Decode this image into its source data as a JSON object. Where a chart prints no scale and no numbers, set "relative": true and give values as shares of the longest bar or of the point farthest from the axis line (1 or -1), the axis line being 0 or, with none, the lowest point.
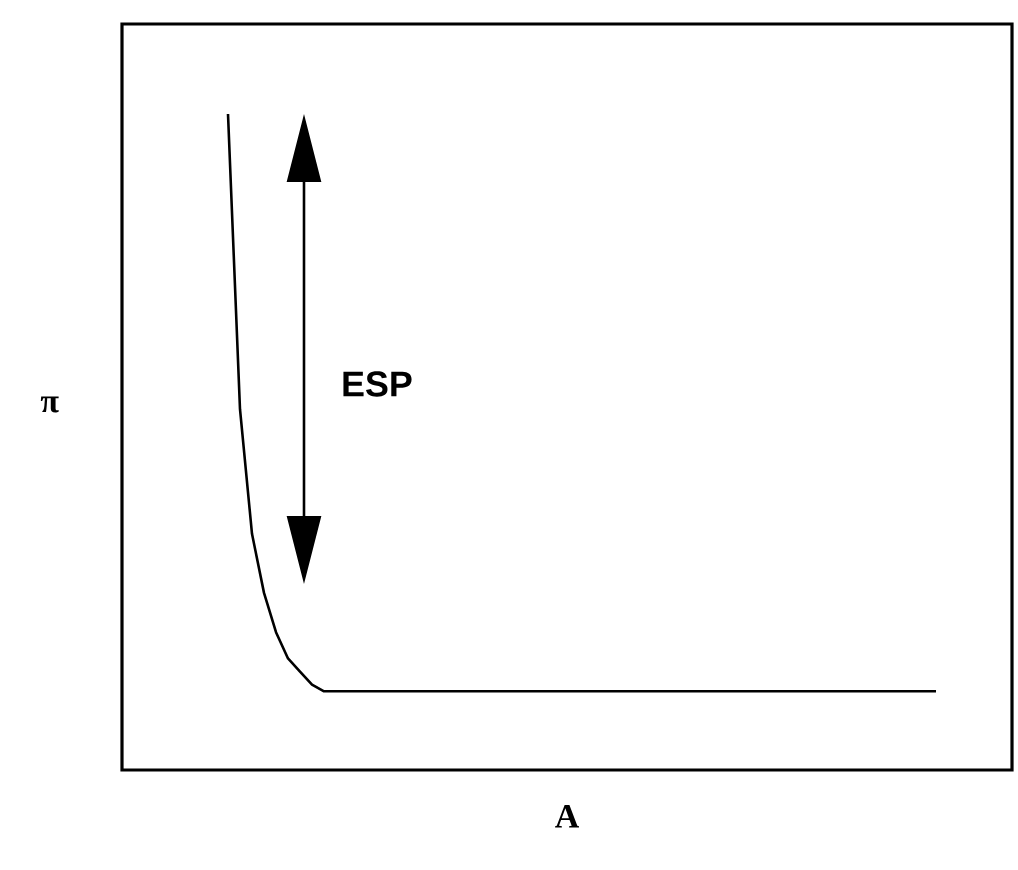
{
  "chart_data": {
    "type": "line",
    "relative": true,
    "xlabel": "A",
    "ylabel": "π",
    "annotations": [
      "ESP"
    ],
    "color": "#000000",
    "categories": [
      null,
      null,
      null,
      null,
      null,
      null,
      null,
      null,
      null,
      null,
      null,
      null,
      null,
      null,
      null,
      null,
      null,
      null,
      null,
      null,
      null,
      null,
      null,
      null,
      null,
      null,
      null,
      null,
      null,
      null,
      null,
      null,
      null,
      null,
      null,
      null,
      null,
      null,
      null,
      null,
      null,
      null,
      null,
      null,
      null,
      null,
      null,
      null,
      null,
      null,
      null,
      null,
      null,
      null,
      null,
      null,
      null,
      null,
      null,
      null
    ],
    "values": [
      1,
      0.55,
      0.36,
      0.27,
      0.21,
      0.17,
      0.15,
      0.13,
      0.12,
      0.12,
      0.12,
      0.12,
      0.12,
      0.12,
      0.12,
      0.12,
      0.12,
      0.12,
      0.12,
      0.12,
      0.12,
      0.12,
      0.12,
      0.12,
      0.12,
      0.12,
      0.12,
      0.12,
      0.12,
      0.12,
      0.12,
      0.12,
      0.12,
      0.12,
      0.12,
      0.12,
      0.12,
      0.12,
      0.12,
      0.12,
      0.12,
      0.12,
      0.12,
      0.12,
      0.12,
      0.12,
      0.12,
      0.12,
      0.12,
      0.12,
      0.12,
      0.12,
      0.12,
      0.12,
      0.12,
      0.12,
      0.12,
      0.12,
      0.12,
      0.12
    ]
  }
}
